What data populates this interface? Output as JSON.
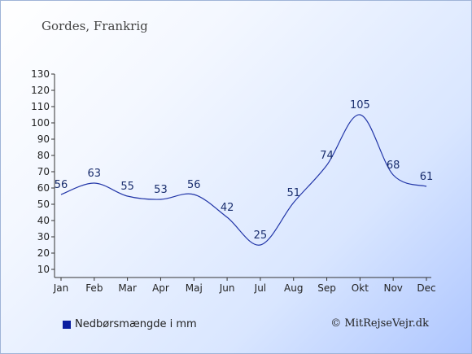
{
  "header": {
    "title": "Gordes, Frankrig"
  },
  "legend": {
    "label": "Nedbørsmængde i mm",
    "swatch_color": "#0b1ea0"
  },
  "footer": {
    "copyright": "© MitRejseVejr.dk"
  },
  "chart_data": {
    "type": "line",
    "categories": [
      "Jan",
      "Feb",
      "Mar",
      "Apr",
      "Maj",
      "Jun",
      "Jul",
      "Aug",
      "Sep",
      "Okt",
      "Nov",
      "Dec"
    ],
    "series": [
      {
        "values": [
          56,
          63,
          55,
          53,
          56,
          42,
          25,
          51,
          74,
          105,
          68,
          61
        ]
      }
    ],
    "yticks": [
      10,
      20,
      30,
      40,
      50,
      60,
      70,
      80,
      90,
      100,
      110,
      120,
      130
    ],
    "ylim": [
      5,
      130
    ],
    "grid": false,
    "line_color": "#2236a8",
    "data_labels": true
  }
}
